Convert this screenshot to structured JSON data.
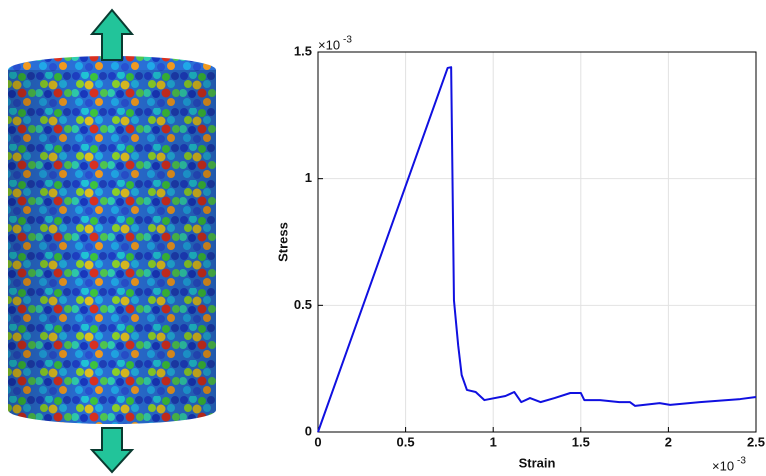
{
  "chart_data": {
    "type": "line",
    "xlabel": "Strain",
    "ylabel": "Stress",
    "x_multiplier": "×10",
    "x_exponent": "-3",
    "y_multiplier": "×10",
    "y_exponent": "-3",
    "x": [
      0,
      0.74,
      0.76,
      0.776,
      0.8,
      0.82,
      0.85,
      0.9,
      0.95,
      1.07,
      1.12,
      1.16,
      1.21,
      1.27,
      1.35,
      1.44,
      1.5,
      1.52,
      1.61,
      1.72,
      1.78,
      1.81,
      1.95,
      2.01,
      2.18,
      2.41,
      2.5
    ],
    "values": [
      0,
      1.437,
      1.44,
      0.52,
      0.343,
      0.225,
      0.166,
      0.158,
      0.126,
      0.142,
      0.158,
      0.118,
      0.134,
      0.118,
      0.134,
      0.154,
      0.154,
      0.126,
      0.126,
      0.118,
      0.118,
      0.103,
      0.114,
      0.107,
      0.118,
      0.13,
      0.138
    ],
    "color": "#1010e0",
    "xlim": [
      0,
      2.5
    ],
    "ylim": [
      0,
      1.5
    ],
    "xticks": [
      0,
      0.5,
      1,
      1.5,
      2,
      2.5
    ],
    "yticks": [
      0,
      0.5,
      1,
      1.5
    ],
    "grid": true
  }
}
